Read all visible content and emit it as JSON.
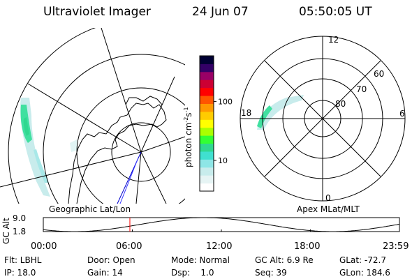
{
  "header": {
    "title": "Ultraviolet Imager",
    "date": "24 Jun 07",
    "time": "05:50:05 UT"
  },
  "panels": {
    "geo_label": "Geographic Lat/Lon",
    "apex_label": "Apex MLat/MLT"
  },
  "colorbar": {
    "label_parts": [
      "photon cm",
      "-2",
      "s",
      "-1"
    ],
    "ticks": [
      {
        "value": 10,
        "label": "10"
      },
      {
        "value": 100,
        "label": "100"
      }
    ],
    "colors": [
      "#ffffff",
      "#e6f4f4",
      "#c8ecec",
      "#8ee6e6",
      "#40e0d0",
      "#30d890",
      "#33ff33",
      "#aaff00",
      "#ffff00",
      "#ffcc00",
      "#ff9900",
      "#ff5500",
      "#ff0000",
      "#cc0033",
      "#990066",
      "#330066",
      "#000033"
    ]
  },
  "apex_plot": {
    "mlat_labels": [
      "80",
      "70",
      "60"
    ],
    "mlt_labels": {
      "top": "12",
      "right": "6",
      "bottom": "0",
      "left": "18"
    }
  },
  "altitude_plot": {
    "ylabel": "GC Alt",
    "y_ticks": [
      "9.0",
      "1.8"
    ],
    "x_ticks": [
      "00:00",
      "06:00",
      "12:00",
      "18:00",
      "23:59"
    ],
    "ymin": 1.8,
    "ymax": 9.0,
    "marker_time_hours": 5.834
  },
  "info": {
    "filter": "Flt: LBHL",
    "ip": "IP: 18.0",
    "door": "Door: Open",
    "gain": "Gain: 14",
    "mode": "Mode: Normal",
    "dsp": "Dsp:    1.0",
    "gc_alt": "GC Alt: 6.9 Re",
    "seq": "Seq: 39",
    "glat": "GLat: -72.7",
    "glon": "GLon: 184.6"
  }
}
